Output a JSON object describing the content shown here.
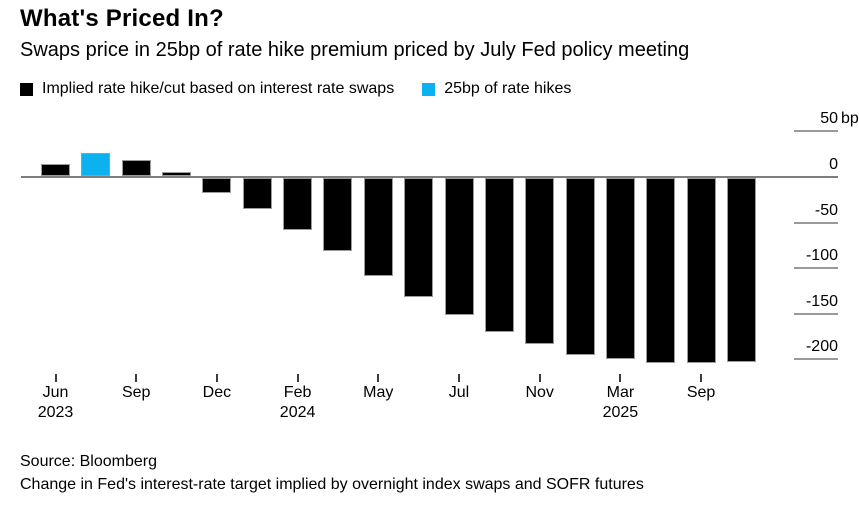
{
  "header": {
    "title": "What's Priced In?",
    "subtitle": "Swaps price in 25bp of rate hike premium priced by July Fed policy meeting"
  },
  "legend": [
    {
      "label": "Implied rate hike/cut based on interest rate swaps",
      "color": "#000000"
    },
    {
      "label": "25bp of rate hikes",
      "color": "#0cb1f0"
    }
  ],
  "footer": {
    "source": "Source: Bloomberg",
    "note": "Change in Fed's interest-rate target implied by overnight index swaps and SOFR futures"
  },
  "chart_data": {
    "type": "bar",
    "title": "What's Priced In?",
    "unit": "bp",
    "ylabel": "",
    "xlabel": "",
    "ylim": [
      -215,
      50
    ],
    "grid": "zero-line-only, right-side tick labels",
    "legend_position": "top-left",
    "series_label": "Implied rate hike/cut based on interest rate swaps",
    "highlight_series_label": "25bp of rate hikes",
    "bar_color": "#000000",
    "highlight_color": "#0cb1f0",
    "highlight_index": 1,
    "values": [
      13,
      25,
      18,
      4,
      -16,
      -34,
      -57,
      -80,
      -108,
      -130,
      -150,
      -169,
      -182,
      -194,
      -198,
      -203,
      -203,
      -202
    ],
    "y_ticks": [
      {
        "value": 50,
        "label": "50",
        "unit": "bp"
      },
      {
        "value": 0,
        "label": "0"
      },
      {
        "value": -50,
        "label": "-50"
      },
      {
        "value": -100,
        "label": "-100"
      },
      {
        "value": -150,
        "label": "-150"
      },
      {
        "value": -200,
        "label": "-200"
      }
    ],
    "x_ticks": [
      {
        "bar_index": 0,
        "month": "Jun",
        "year": "2023"
      },
      {
        "bar_index": 2,
        "month": "Sep"
      },
      {
        "bar_index": 4,
        "month": "Dec"
      },
      {
        "bar_index": 6,
        "month": "Feb",
        "year": "2024"
      },
      {
        "bar_index": 8,
        "month": "May"
      },
      {
        "bar_index": 10,
        "month": "Jul"
      },
      {
        "bar_index": 12,
        "month": "Nov"
      },
      {
        "bar_index": 14,
        "month": "Mar",
        "year": "2025"
      },
      {
        "bar_index": 16,
        "month": "Sep"
      }
    ]
  }
}
